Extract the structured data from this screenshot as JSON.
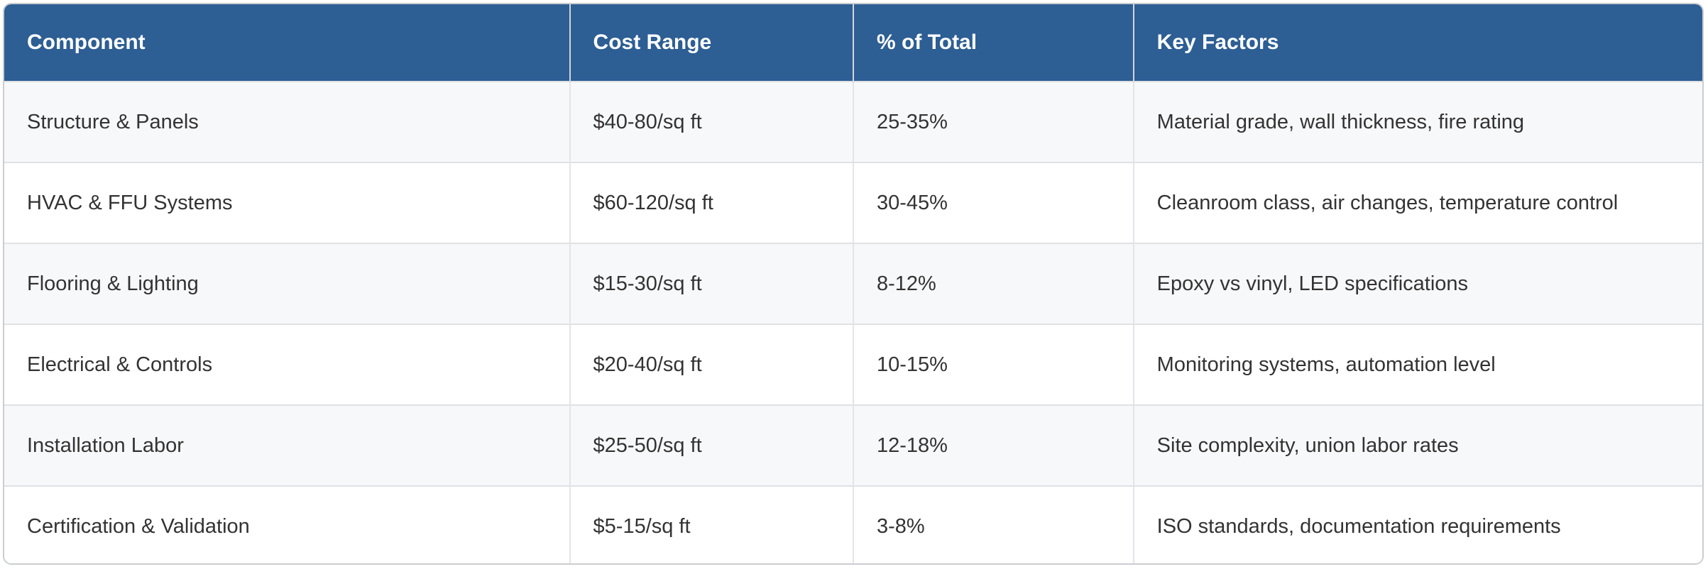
{
  "table": {
    "columns": [
      {
        "label": "Component"
      },
      {
        "label": "Cost Range"
      },
      {
        "label": "% of Total"
      },
      {
        "label": "Key Factors"
      }
    ],
    "rows": [
      {
        "component": "Structure & Panels",
        "cost_range": "$40-80/sq ft",
        "pct_of_total": "25-35%",
        "key_factors": "Material grade, wall thickness, fire rating"
      },
      {
        "component": "HVAC & FFU Systems",
        "cost_range": "$60-120/sq ft",
        "pct_of_total": "30-45%",
        "key_factors": "Cleanroom class, air changes, temperature control"
      },
      {
        "component": "Flooring & Lighting",
        "cost_range": "$15-30/sq ft",
        "pct_of_total": "8-12%",
        "key_factors": "Epoxy vs vinyl, LED specifications"
      },
      {
        "component": "Electrical & Controls",
        "cost_range": "$20-40/sq ft",
        "pct_of_total": "10-15%",
        "key_factors": "Monitoring systems, automation level"
      },
      {
        "component": "Installation Labor",
        "cost_range": "$25-50/sq ft",
        "pct_of_total": "12-18%",
        "key_factors": "Site complexity, union labor rates"
      },
      {
        "component": "Certification & Validation",
        "cost_range": "$5-15/sq ft",
        "pct_of_total": "3-8%",
        "key_factors": "ISO standards, documentation requirements"
      }
    ]
  },
  "colors": {
    "header_bg": "#2d5e94",
    "header_text": "#ffffff",
    "row_stripe": "#f7f8fa",
    "row_plain": "#ffffff",
    "divider": "#dfe1e4",
    "outer_border": "#cbcdd1",
    "body_text": "#333333"
  },
  "chart_data": {
    "type": "table",
    "title": "",
    "columns": [
      "Component",
      "Cost Range",
      "% of Total",
      "Key Factors"
    ],
    "rows": [
      [
        "Structure & Panels",
        "$40-80/sq ft",
        "25-35%",
        "Material grade, wall thickness, fire rating"
      ],
      [
        "HVAC & FFU Systems",
        "$60-120/sq ft",
        "30-45%",
        "Cleanroom class, air changes, temperature control"
      ],
      [
        "Flooring & Lighting",
        "$15-30/sq ft",
        "8-12%",
        "Epoxy vs vinyl, LED specifications"
      ],
      [
        "Electrical & Controls",
        "$20-40/sq ft",
        "10-15%",
        "Monitoring systems, automation level"
      ],
      [
        "Installation Labor",
        "$25-50/sq ft",
        "12-18%",
        "Site complexity, union labor rates"
      ],
      [
        "Certification & Validation",
        "$5-15/sq ft",
        "3-8%",
        "ISO standards, documentation requirements"
      ]
    ]
  }
}
